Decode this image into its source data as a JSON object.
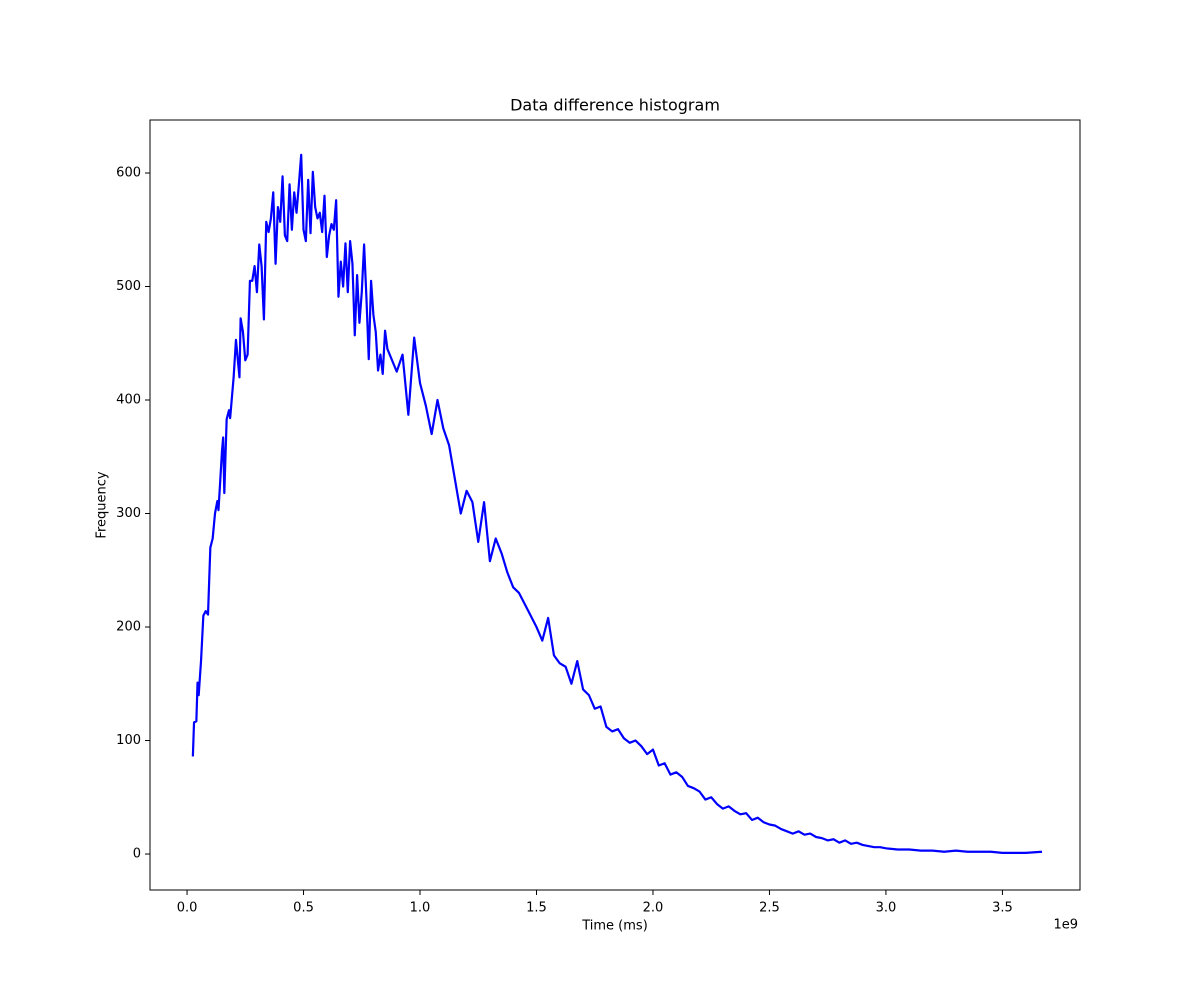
{
  "chart_data": {
    "type": "line",
    "title": "Data difference histogram",
    "x_label": "Time (ms)",
    "y_label": "Frequency",
    "x_offset_label": "1e9",
    "color": "#0000ff",
    "xlim": [
      -159000000.0,
      3833000000.0
    ],
    "ylim": [
      -31.7,
      646.7
    ],
    "xticks": [
      {
        "value": 0,
        "label": "0.0"
      },
      {
        "value": 500000000.0,
        "label": "0.5"
      },
      {
        "value": 1000000000.0,
        "label": "1.0"
      },
      {
        "value": 1500000000.0,
        "label": "1.5"
      },
      {
        "value": 2000000000.0,
        "label": "2.0"
      },
      {
        "value": 2500000000.0,
        "label": "2.5"
      },
      {
        "value": 3000000000.0,
        "label": "3.0"
      },
      {
        "value": 3500000000.0,
        "label": "3.5"
      }
    ],
    "yticks": [
      0,
      100,
      200,
      300,
      400,
      500,
      600
    ],
    "x": [
      25000000.0,
      30000000.0,
      40000000.0,
      45000000.0,
      50000000.0,
      60000000.0,
      70000000.0,
      80000000.0,
      90000000.0,
      100000000.0,
      110000000.0,
      120000000.0,
      130000000.0,
      135000000.0,
      150000000.0,
      155000000.0,
      160000000.0,
      170000000.0,
      180000000.0,
      185000000.0,
      200000000.0,
      210000000.0,
      225000000.0,
      230000000.0,
      240000000.0,
      250000000.0,
      260000000.0,
      270000000.0,
      280000000.0,
      290000000.0,
      300000000.0,
      310000000.0,
      320000000.0,
      330000000.0,
      340000000.0,
      350000000.0,
      360000000.0,
      370000000.0,
      380000000.0,
      390000000.0,
      400000000.0,
      410000000.0,
      420000000.0,
      430000000.0,
      440000000.0,
      450000000.0,
      460000000.0,
      470000000.0,
      480000000.0,
      490000000.0,
      500000000.0,
      510000000.0,
      520000000.0,
      530000000.0,
      540000000.0,
      550000000.0,
      560000000.0,
      570000000.0,
      580000000.0,
      590000000.0,
      600000000.0,
      610000000.0,
      620000000.0,
      630000000.0,
      640000000.0,
      650000000.0,
      660000000.0,
      670000000.0,
      680000000.0,
      690000000.0,
      700000000.0,
      710000000.0,
      720000000.0,
      730000000.0,
      740000000.0,
      750000000.0,
      760000000.0,
      770000000.0,
      780000000.0,
      790000000.0,
      800000000.0,
      810000000.0,
      820000000.0,
      830000000.0,
      840000000.0,
      850000000.0,
      860000000.0,
      900000000.0,
      925000000.0,
      950000000.0,
      975000000.0,
      1000000000.0,
      1025000000.0,
      1050000000.0,
      1075000000.0,
      1100000000.0,
      1125000000.0,
      1150000000.0,
      1175000000.0,
      1200000000.0,
      1225000000.0,
      1250000000.0,
      1275000000.0,
      1300000000.0,
      1325000000.0,
      1350000000.0,
      1375000000.0,
      1400000000.0,
      1425000000.0,
      1450000000.0,
      1475000000.0,
      1500000000.0,
      1525000000.0,
      1550000000.0,
      1575000000.0,
      1600000000.0,
      1625000000.0,
      1650000000.0,
      1675000000.0,
      1700000000.0,
      1725000000.0,
      1750000000.0,
      1775000000.0,
      1800000000.0,
      1825000000.0,
      1850000000.0,
      1875000000.0,
      1900000000.0,
      1925000000.0,
      1950000000.0,
      1975000000.0,
      2000000000.0,
      2025000000.0,
      2050000000.0,
      2075000000.0,
      2100000000.0,
      2125000000.0,
      2150000000.0,
      2175000000.0,
      2200000000.0,
      2225000000.0,
      2250000000.0,
      2275000000.0,
      2300000000.0,
      2325000000.0,
      2350000000.0,
      2375000000.0,
      2400000000.0,
      2425000000.0,
      2450000000.0,
      2475000000.0,
      2500000000.0,
      2525000000.0,
      2550000000.0,
      2575000000.0,
      2600000000.0,
      2625000000.0,
      2650000000.0,
      2675000000.0,
      2700000000.0,
      2725000000.0,
      2750000000.0,
      2775000000.0,
      2800000000.0,
      2825000000.0,
      2850000000.0,
      2875000000.0,
      2900000000.0,
      2925000000.0,
      2950000000.0,
      2975000000.0,
      3000000000.0,
      3050000000.0,
      3100000000.0,
      3150000000.0,
      3200000000.0,
      3250000000.0,
      3300000000.0,
      3350000000.0,
      3400000000.0,
      3450000000.0,
      3500000000.0,
      3550000000.0,
      3600000000.0,
      3670000000.0
    ],
    "values": [
      86,
      116,
      117,
      151,
      140,
      170,
      210,
      214,
      211,
      270,
      278,
      300,
      311,
      303,
      355,
      367,
      318,
      383,
      391,
      384,
      420,
      453,
      420,
      472,
      460,
      435,
      440,
      505,
      505,
      518,
      495,
      537,
      518,
      471,
      557,
      548,
      560,
      583,
      520,
      570,
      557,
      597,
      545,
      540,
      590,
      550,
      583,
      565,
      590,
      616,
      550,
      540,
      594,
      547,
      601,
      570,
      560,
      565,
      548,
      580,
      526,
      545,
      555,
      550,
      576,
      491,
      522,
      500,
      538,
      495,
      540,
      520,
      457,
      510,
      468,
      495,
      537,
      490,
      436,
      505,
      475,
      460,
      426,
      440,
      423,
      461,
      445,
      425,
      440,
      387,
      455,
      415,
      395,
      370,
      400,
      375,
      360,
      330,
      300,
      320,
      310,
      275,
      310,
      258,
      278,
      265,
      248,
      235,
      230,
      220,
      210,
      200,
      188,
      208,
      175,
      168,
      165,
      150,
      170,
      145,
      140,
      128,
      130,
      112,
      108,
      110,
      102,
      98,
      100,
      95,
      88,
      92,
      78,
      80,
      70,
      72,
      68,
      60,
      58,
      55,
      48,
      50,
      44,
      40,
      42,
      38,
      35,
      36,
      30,
      32,
      28,
      26,
      25,
      22,
      20,
      18,
      20,
      17,
      18,
      15,
      14,
      12,
      13,
      10,
      12,
      9,
      10,
      8,
      7,
      6,
      6,
      5,
      4,
      4,
      3,
      3,
      2,
      3,
      2,
      2,
      2,
      1,
      1,
      1,
      2
    ]
  }
}
